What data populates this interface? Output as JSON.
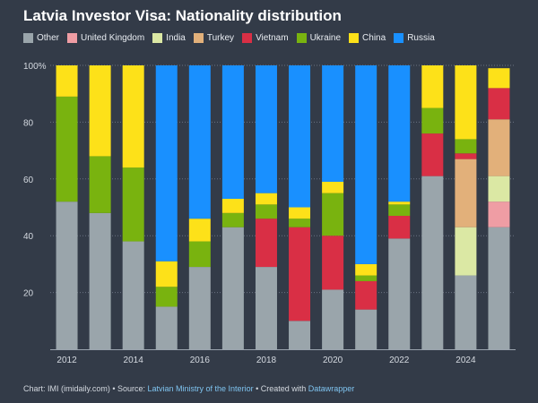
{
  "title": "Latvia Investor Visa: Nationality distribution",
  "footer": {
    "prefix": "Chart: IMI (imidaily.com) • Source: ",
    "source": "Latvian Ministry of the Interior",
    "middle": " • Created with ",
    "tool": "Datawrapper"
  },
  "chart_data": {
    "type": "bar",
    "stacked": true,
    "title": "Latvia Investor Visa: Nationality distribution",
    "xlabel": "",
    "ylabel": "",
    "ylim": [
      0,
      100
    ],
    "y_ticks": [
      20,
      40,
      60,
      80,
      100
    ],
    "y_tick_labels": [
      "20",
      "40",
      "60",
      "80",
      "100%"
    ],
    "x_tick_labels": [
      "2012",
      "2014",
      "2016",
      "2018",
      "2020",
      "2022",
      "2024"
    ],
    "categories": [
      "2012",
      "2013",
      "2014",
      "2015",
      "2016",
      "2017",
      "2018",
      "2019",
      "2020",
      "2021",
      "2022",
      "2023",
      "2024",
      "2025"
    ],
    "series": [
      {
        "name": "Other",
        "color": "#9aa5ab",
        "values": [
          52,
          48,
          38,
          15,
          29,
          43,
          29,
          10,
          21,
          14,
          39,
          61,
          26,
          43
        ]
      },
      {
        "name": "United Kingdom",
        "color": "#ef9da4",
        "values": [
          0,
          0,
          0,
          0,
          0,
          0,
          0,
          0,
          0,
          0,
          0,
          0,
          0,
          9
        ]
      },
      {
        "name": "India",
        "color": "#dbe8a4",
        "values": [
          0,
          0,
          0,
          0,
          0,
          0,
          0,
          0,
          0,
          0,
          0,
          0,
          17,
          9
        ]
      },
      {
        "name": "Turkey",
        "color": "#e2b07a",
        "values": [
          0,
          0,
          0,
          0,
          0,
          0,
          0,
          0,
          0,
          0,
          0,
          0,
          24,
          20
        ]
      },
      {
        "name": "Vietnam",
        "color": "#d92f45",
        "values": [
          0,
          0,
          0,
          0,
          0,
          0,
          17,
          33,
          19,
          10,
          8,
          15,
          2,
          11
        ]
      },
      {
        "name": "Ukraine",
        "color": "#79b30f",
        "values": [
          37,
          20,
          26,
          7,
          9,
          5,
          5,
          3,
          15,
          2,
          4,
          9,
          5,
          0
        ]
      },
      {
        "name": "China",
        "color": "#fde119",
        "values": [
          11,
          32,
          36,
          9,
          8,
          5,
          4,
          4,
          4,
          4,
          1,
          15,
          26,
          7
        ]
      },
      {
        "name": "Russia",
        "color": "#1990ff",
        "values": [
          0,
          0,
          0,
          69,
          54,
          47,
          45,
          50,
          41,
          70,
          48,
          0,
          0,
          0
        ]
      }
    ]
  }
}
